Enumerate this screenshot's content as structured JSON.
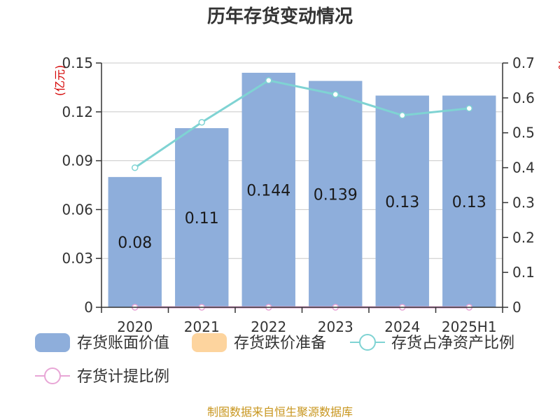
{
  "chart_data": {
    "type": "bar",
    "title": "历年存货变动情况",
    "left_unit": "(亿元)",
    "right_unit": "%",
    "categories": [
      "2020",
      "2021",
      "2022",
      "2023",
      "2024",
      "2025H1"
    ],
    "y_left": {
      "ticks": [
        "0",
        "0.03",
        "0.06",
        "0.09",
        "0.12",
        "0.15"
      ],
      "lim": [
        0,
        0.15
      ]
    },
    "y_right": {
      "ticks": [
        "0",
        "0.1",
        "0.2",
        "0.3",
        "0.4",
        "0.5",
        "0.6",
        "0.7"
      ],
      "lim": [
        0,
        0.7
      ]
    },
    "grid": true,
    "legend_position": "bottom",
    "series": [
      {
        "name": "存货账面价值",
        "kind": "bar",
        "axis": "left",
        "color": "#8eaedb",
        "values": [
          0.08,
          0.11,
          0.144,
          0.139,
          0.13,
          0.13
        ],
        "labels": [
          "0.08",
          "0.11",
          "0.144",
          "0.139",
          "0.13",
          "0.13"
        ]
      },
      {
        "name": "存货跌价准备",
        "kind": "bar",
        "axis": "left",
        "color": "#fdd49e",
        "values": [
          0,
          0,
          0,
          0,
          0,
          0
        ]
      },
      {
        "name": "存货占净资产比例",
        "kind": "line",
        "axis": "right",
        "color": "#7fd3d3",
        "values": [
          0.4,
          0.53,
          0.65,
          0.61,
          0.55,
          0.57
        ]
      },
      {
        "name": "存货计提比例",
        "kind": "line",
        "axis": "right",
        "color": "#e8a6d6",
        "values": [
          0,
          0,
          0,
          0,
          0,
          0
        ]
      }
    ],
    "source": "制图数据来自恒生聚源数据库"
  }
}
